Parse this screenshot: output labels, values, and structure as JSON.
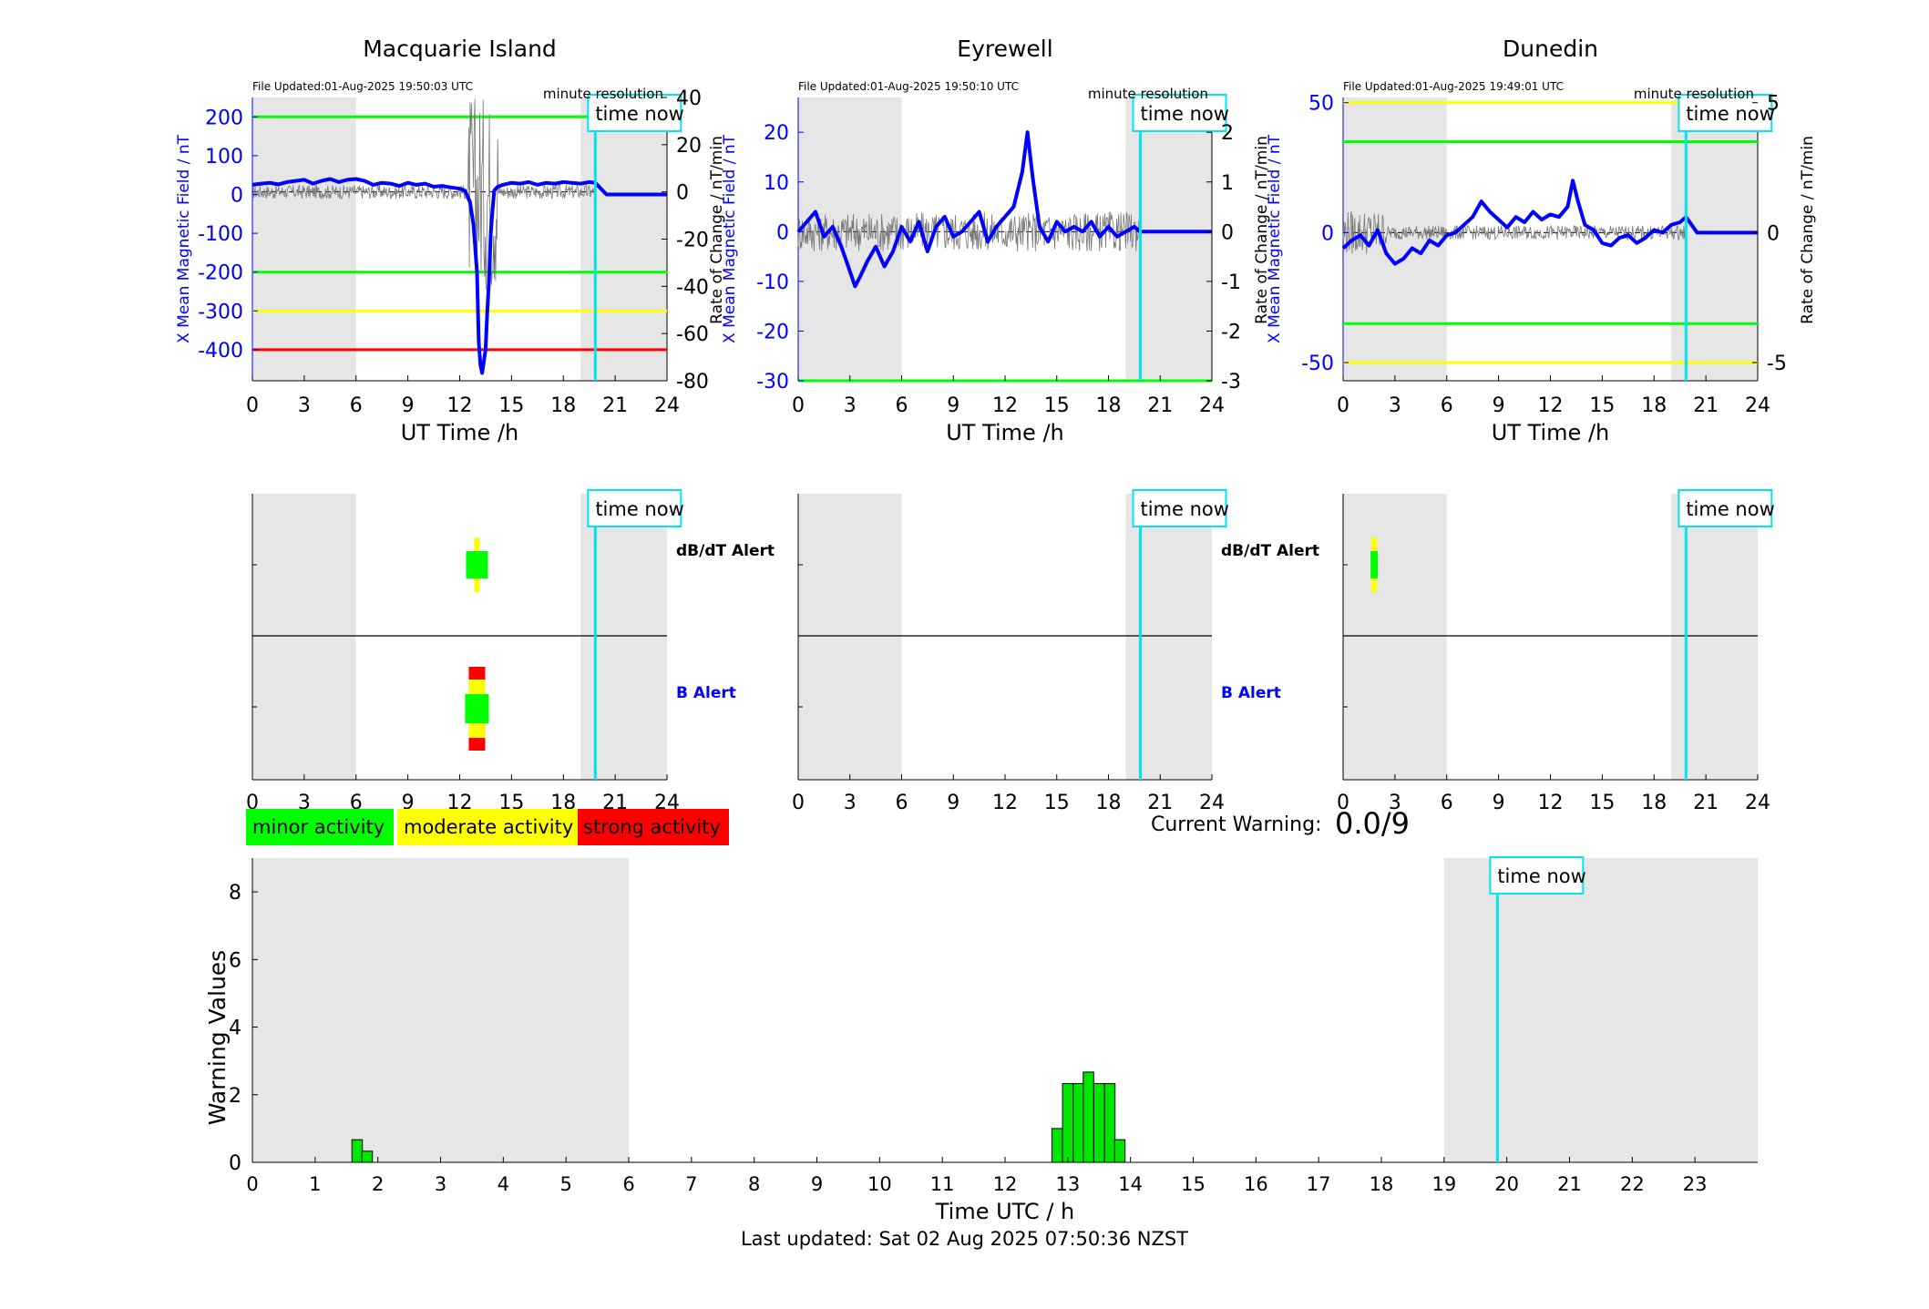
{
  "colors": {
    "shade": "#e6e6e6",
    "blue": "#0000ff",
    "green": "#00ff00",
    "yellow": "#ffff00",
    "red": "#ff0000",
    "cyan": "#00e5ee",
    "bar": "#00e600"
  },
  "chart_data": [
    {
      "type": "line",
      "title": "Macquarie Island",
      "file_updated": "File Updated:01-Aug-2025 19:50:03 UTC",
      "resolution_label": "minute resolution",
      "time_now_label": "time now",
      "time_now_h": 19.85,
      "xlabel": "UT Time /h",
      "xlim": [
        0,
        24
      ],
      "xticks": [
        0,
        3,
        6,
        9,
        12,
        15,
        18,
        21,
        24
      ],
      "ylabel_left": "X Mean Magnetic Field / nT",
      "ylim_left": [
        -480,
        250
      ],
      "yticks_left": [
        200,
        100,
        0,
        -100,
        -200,
        -300,
        -400
      ],
      "ylabel_right": "Rate of Change / nT/min",
      "ylim_right": [
        -80,
        40
      ],
      "yticks_right": [
        40,
        20,
        0,
        -20,
        -40,
        -60,
        -80
      ],
      "shaded_h": [
        [
          0,
          6
        ],
        [
          19,
          24
        ]
      ],
      "thresholds": [
        {
          "value": 200,
          "color": "green"
        },
        {
          "value": -200,
          "color": "green"
        },
        {
          "value": -300,
          "color": "yellow"
        },
        {
          "value": -400,
          "color": "red"
        }
      ],
      "series": [
        {
          "x": [
            0,
            0.5,
            1,
            1.5,
            2,
            2.5,
            3,
            3.5,
            4,
            4.5,
            5,
            5.5,
            6,
            6.5,
            7,
            7.5,
            8,
            8.5,
            9,
            9.5,
            10,
            10.5,
            11,
            11.5,
            12,
            12.3,
            12.6,
            12.8,
            13,
            13.1,
            13.2,
            13.3,
            13.4,
            13.5,
            13.6,
            13.7,
            13.8,
            13.9,
            14,
            14.2,
            14.5,
            15,
            15.5,
            16,
            16.5,
            17,
            17.5,
            18,
            18.5,
            19,
            19.5,
            19.85,
            20.5,
            21,
            22,
            23,
            24
          ],
          "y": [
            25,
            28,
            30,
            26,
            32,
            35,
            38,
            28,
            35,
            40,
            32,
            38,
            40,
            35,
            25,
            30,
            28,
            22,
            30,
            25,
            28,
            20,
            22,
            18,
            15,
            10,
            -20,
            -80,
            -200,
            -380,
            -440,
            -460,
            -430,
            -400,
            -300,
            -220,
            -100,
            -40,
            10,
            20,
            25,
            30,
            28,
            32,
            25,
            30,
            28,
            32,
            30,
            28,
            32,
            30,
            0,
            0,
            0,
            0,
            0
          ]
        }
      ]
    },
    {
      "type": "line",
      "title": "Eyrewell",
      "file_updated": "File Updated:01-Aug-2025 19:50:10 UTC",
      "resolution_label": "minute resolution",
      "time_now_label": "time now",
      "time_now_h": 19.85,
      "xlabel": "UT Time /h",
      "xlim": [
        0,
        24
      ],
      "xticks": [
        0,
        3,
        6,
        9,
        12,
        15,
        18,
        21,
        24
      ],
      "ylabel_left": "X Mean Magnetic Field / nT",
      "ylim_left": [
        -30,
        27
      ],
      "yticks_left": [
        20,
        10,
        0,
        -10,
        -20,
        -30
      ],
      "ylabel_right": "Rate of Change / nT/min",
      "ylim_right": [
        -3,
        2.7
      ],
      "yticks_right": [
        2,
        1,
        0,
        -1,
        -2,
        -3
      ],
      "shaded_h": [
        [
          0,
          6
        ],
        [
          19,
          24
        ]
      ],
      "thresholds": [
        {
          "value": -30,
          "color": "green"
        }
      ],
      "series": [
        {
          "x": [
            0,
            0.5,
            1,
            1.5,
            2,
            2.5,
            3,
            3.3,
            3.6,
            4,
            4.5,
            5,
            5.5,
            6,
            6.5,
            7,
            7.5,
            8,
            8.5,
            9,
            9.5,
            10,
            10.5,
            11,
            11.5,
            12,
            12.5,
            13,
            13.3,
            13.6,
            14,
            14.5,
            15,
            15.5,
            16,
            16.5,
            17,
            17.5,
            18,
            18.5,
            19,
            19.5,
            19.85,
            20.5,
            21,
            22,
            23,
            24
          ],
          "y": [
            0,
            2,
            4,
            -1,
            1,
            -3,
            -8,
            -11,
            -9,
            -6,
            -3,
            -7,
            -4,
            1,
            -2,
            2,
            -4,
            1,
            3,
            -1,
            0,
            2,
            4,
            -2,
            1,
            3,
            5,
            12,
            20,
            11,
            1,
            -2,
            2,
            0,
            1,
            0,
            2,
            -1,
            1,
            -1,
            0,
            1,
            0,
            0,
            0,
            0,
            0,
            0
          ]
        }
      ]
    },
    {
      "type": "line",
      "title": "Dunedin",
      "file_updated": "File Updated:01-Aug-2025 19:49:01 UTC",
      "resolution_label": "minute resolution",
      "time_now_label": "time now",
      "time_now_h": 19.85,
      "xlabel": "UT Time /h",
      "xlim": [
        0,
        24
      ],
      "xticks": [
        0,
        3,
        6,
        9,
        12,
        15,
        18,
        21,
        24
      ],
      "ylabel_left": "X Mean Magnetic Field / nT",
      "ylim_left": [
        -57,
        52
      ],
      "yticks_left": [
        50,
        0,
        -50
      ],
      "ylabel_right": "Rate of Change / nT/min",
      "ylim_right": [
        -5.7,
        5.2
      ],
      "yticks_right": [
        5,
        0,
        -5
      ],
      "shaded_h": [
        [
          0,
          6
        ],
        [
          19,
          24
        ]
      ],
      "thresholds": [
        {
          "value": 50,
          "color": "yellow"
        },
        {
          "value": 35,
          "color": "green"
        },
        {
          "value": -35,
          "color": "green"
        },
        {
          "value": -50,
          "color": "yellow"
        }
      ],
      "series": [
        {
          "x": [
            0,
            0.5,
            1,
            1.5,
            2,
            2.5,
            3,
            3.5,
            4,
            4.5,
            5,
            5.5,
            6,
            6.5,
            7,
            7.5,
            8,
            8.5,
            9,
            9.5,
            10,
            10.5,
            11,
            11.5,
            12,
            12.5,
            13,
            13.3,
            13.6,
            14,
            14.5,
            15,
            15.5,
            16,
            16.5,
            17,
            17.5,
            18,
            18.5,
            19,
            19.5,
            19.85,
            20.5,
            21,
            22,
            23,
            24
          ],
          "y": [
            -6,
            -3,
            -1,
            -5,
            1,
            -8,
            -12,
            -10,
            -6,
            -8,
            -3,
            -5,
            -1,
            0,
            3,
            6,
            12,
            8,
            5,
            2,
            6,
            4,
            8,
            5,
            7,
            6,
            10,
            20,
            12,
            3,
            1,
            -4,
            -5,
            -2,
            -1,
            -4,
            -2,
            1,
            0,
            3,
            4,
            6,
            0,
            0,
            0,
            0,
            0
          ]
        }
      ]
    },
    {
      "type": "bar",
      "ylabel": "Warning Values",
      "xlabel": "Time UTC / h",
      "xlim": [
        0,
        24
      ],
      "ylim": [
        0,
        9
      ],
      "yticks": [
        0,
        2,
        4,
        6,
        8
      ],
      "xticks": [
        0,
        1,
        2,
        3,
        4,
        5,
        6,
        7,
        8,
        9,
        10,
        11,
        12,
        13,
        14,
        15,
        16,
        17,
        18,
        19,
        20,
        21,
        22,
        23
      ],
      "shaded_h": [
        [
          0,
          6
        ],
        [
          19,
          24
        ]
      ],
      "time_now_label": "time now",
      "time_now_h": 19.85,
      "bar_width_h": 0.167,
      "x": [
        1.67,
        1.83,
        12.83,
        13.0,
        13.17,
        13.33,
        13.5,
        13.67,
        13.83
      ],
      "values": [
        0.67,
        0.33,
        1.0,
        2.33,
        2.33,
        2.67,
        2.33,
        2.33,
        0.67
      ]
    }
  ],
  "alerts": [
    {
      "name": "Macquarie Island",
      "dbdt_label": "dB/dT Alert",
      "b_label": "B Alert",
      "time_now_label": "time now",
      "dbdt_marks": [
        {
          "h": 13.0,
          "level": "yellow"
        },
        {
          "h": 13.0,
          "level": "green"
        }
      ],
      "b_marks": [
        {
          "h": 13.0,
          "level": "red"
        },
        {
          "h": 13.0,
          "level": "yellow"
        },
        {
          "h": 13.0,
          "level": "green"
        }
      ]
    },
    {
      "name": "Eyrewell",
      "dbdt_label": "dB/dT Alert",
      "b_label": "B Alert",
      "time_now_label": "time now",
      "dbdt_marks": [],
      "b_marks": []
    },
    {
      "name": "Dunedin",
      "dbdt_label": "",
      "b_label": "",
      "time_now_label": "time now",
      "dbdt_marks": [
        {
          "h": 1.8,
          "level": "yellow"
        },
        {
          "h": 1.8,
          "level": "green"
        }
      ],
      "b_marks": []
    }
  ],
  "alert_xticks": [
    0,
    3,
    6,
    9,
    12,
    15,
    18,
    21,
    24
  ],
  "legend": {
    "minor": "minor activity",
    "moderate": "moderate activity",
    "strong": "strong activity"
  },
  "current_warning": {
    "label": "Current Warning:",
    "value": "0.0/9"
  },
  "footer": "Last updated: Sat 02 Aug 2025 07:50:36 NZST"
}
